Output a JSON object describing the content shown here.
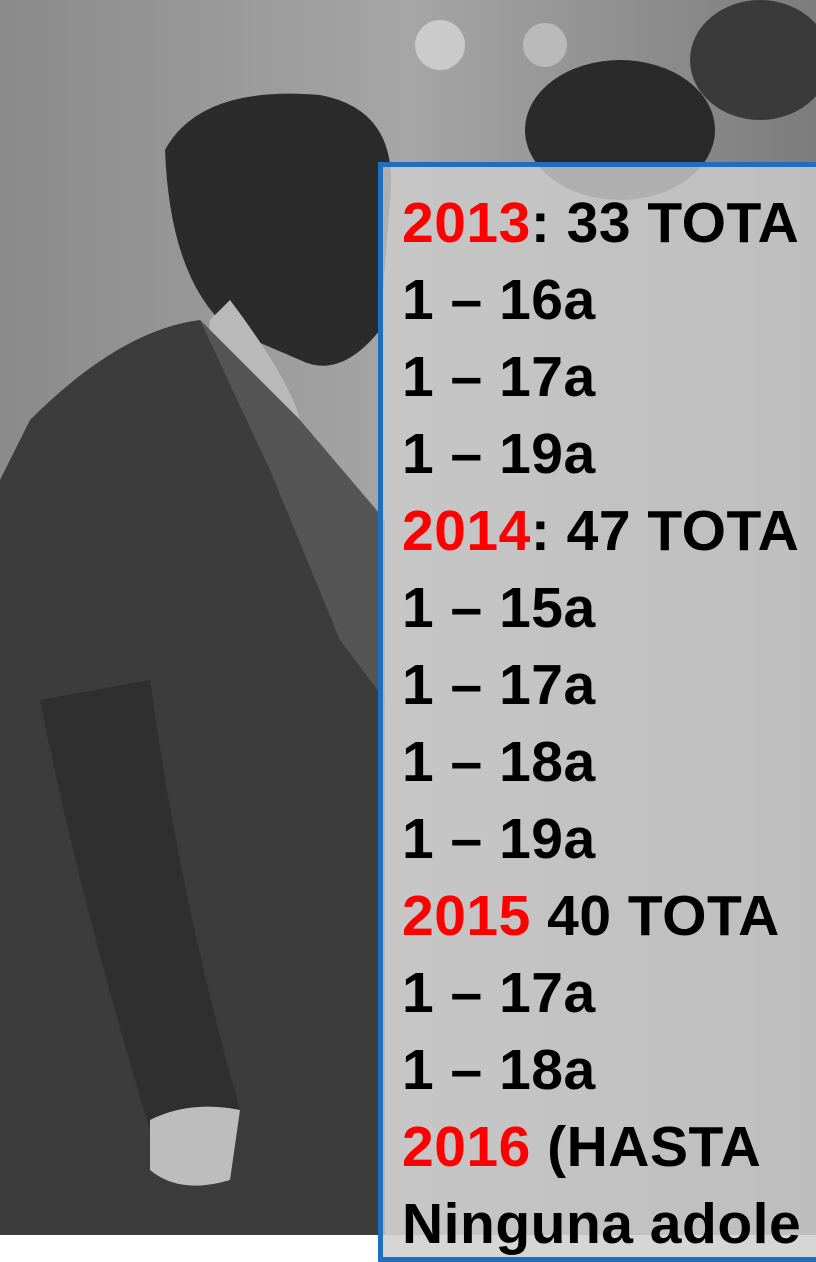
{
  "slide": {
    "lines": [
      {
        "year": "2013",
        "text": ": 33 TOTA"
      },
      {
        "text": "1 – 16a"
      },
      {
        "text": "1 – 17a"
      },
      {
        "text": "1 – 19a"
      },
      {
        "year": "2014",
        "text": ": 47 TOTA"
      },
      {
        "text": "1 – 15a"
      },
      {
        "text": "1 – 17a"
      },
      {
        "text": "1 – 18a"
      },
      {
        "text": "1 – 19a"
      },
      {
        "year": "2015",
        "text": " 40 TOTA"
      },
      {
        "text": "1 – 17a"
      },
      {
        "text": "1 – 18a"
      },
      {
        "year": "2016",
        "text": " (HASTA "
      },
      {
        "text": "Ninguna adole"
      }
    ]
  }
}
